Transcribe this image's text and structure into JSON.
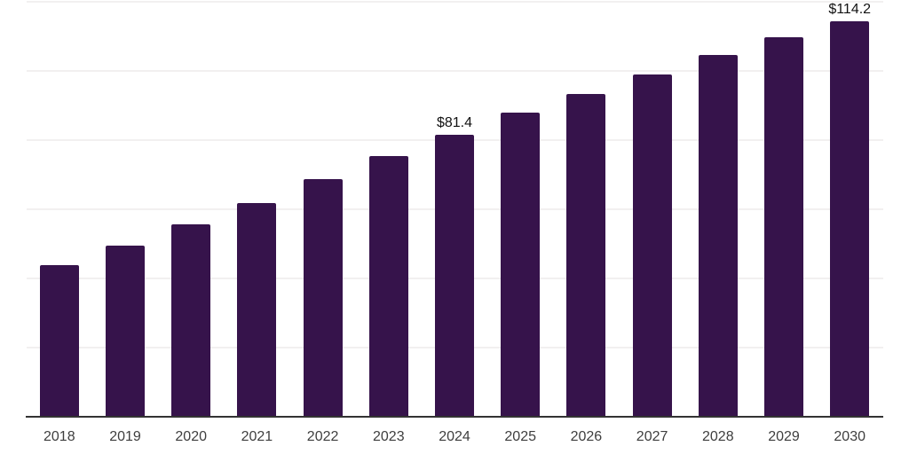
{
  "chart_data": {
    "type": "bar",
    "title": "",
    "xlabel": "",
    "ylabel": "",
    "categories": [
      "2018",
      "2019",
      "2020",
      "2021",
      "2022",
      "2023",
      "2024",
      "2025",
      "2026",
      "2027",
      "2028",
      "2029",
      "2030"
    ],
    "values": [
      43.6,
      49.3,
      55.5,
      61.7,
      68.7,
      75.3,
      81.4,
      87.8,
      93.2,
      98.8,
      104.4,
      109.7,
      114.2
    ],
    "data_labels": [
      {
        "category": "2024",
        "index": 6,
        "text": "$81.4"
      },
      {
        "category": "2030",
        "index": 12,
        "text": "$114.2"
      }
    ],
    "ylim": [
      0,
      120
    ],
    "gridline_step": 20,
    "grid": "horizontal",
    "y_axis_tick_labels_visible": false,
    "legend_position": "none",
    "currency_unit": "$"
  },
  "style": {
    "bar_color": "#36134b",
    "background_color": "#ffffff",
    "gridline_color": "#f2f0f0",
    "axis_line_color": "#333333",
    "tick_label_color": "#3e3e3e",
    "data_label_color": "#121212"
  }
}
